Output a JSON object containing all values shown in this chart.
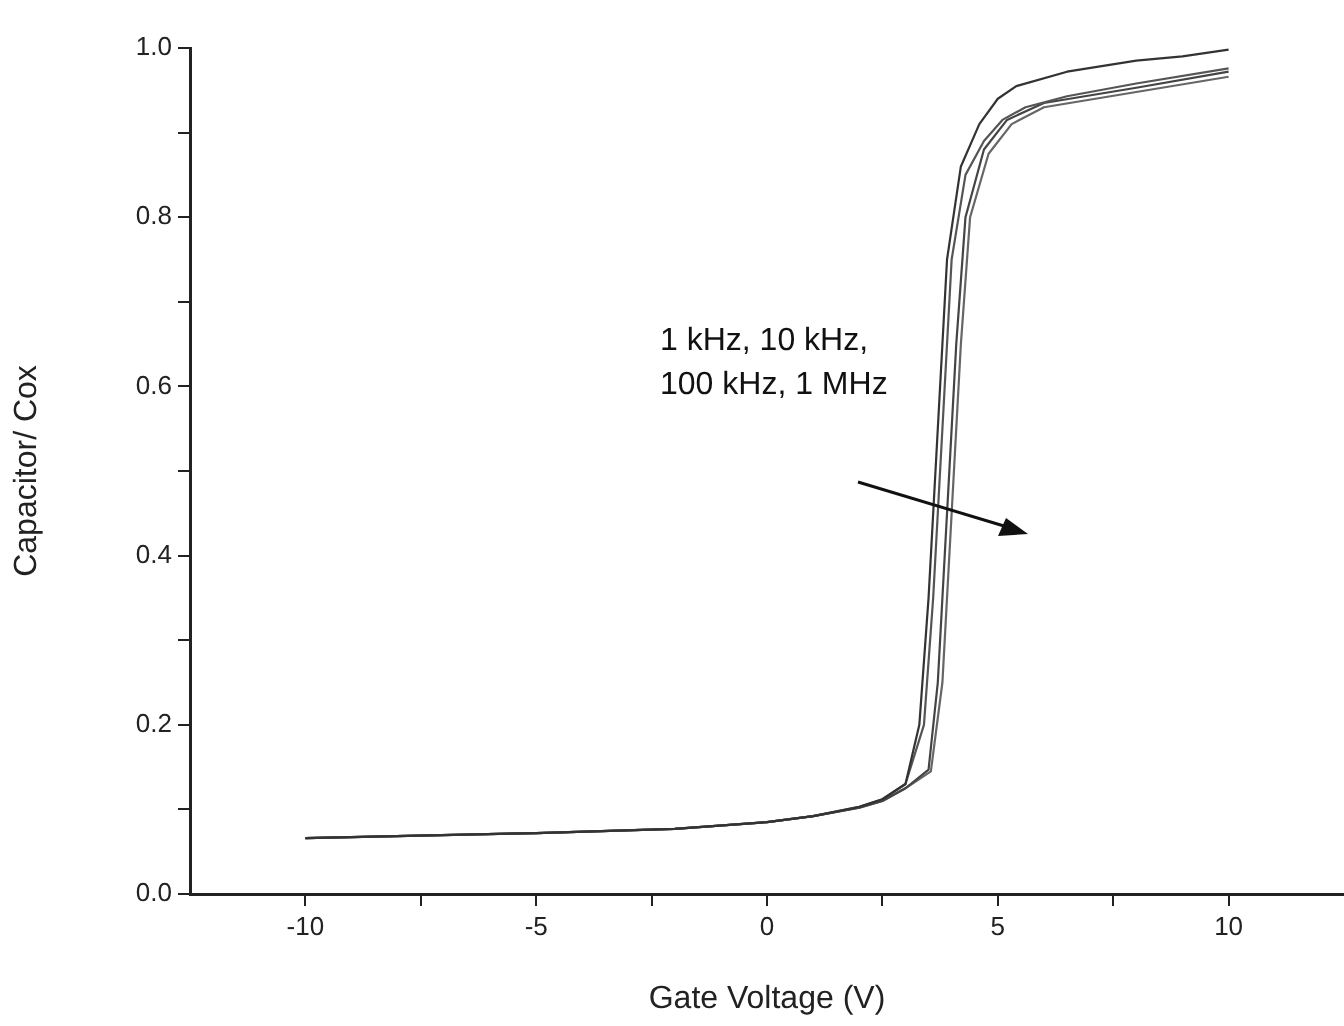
{
  "chart_data": {
    "type": "line",
    "xlabel": "Gate Voltage (V)",
    "ylabel": "Capacitor/ Cox",
    "annotations": [
      "1 kHz, 10 kHz, 100 kHz, 1 MHz"
    ],
    "xlim": [
      -12.5,
      12.5
    ],
    "xticks": [
      -10,
      {
        "value": -7.5,
        "label": null
      },
      -5,
      {
        "value": -2.5,
        "label": null
      },
      0,
      {
        "value": 2.5,
        "label": null
      },
      5,
      {
        "value": 7.5,
        "label": null
      },
      10
    ],
    "ylim": [
      0,
      1
    ],
    "yticks": [
      {
        "value": 0,
        "label": "0.0"
      },
      {
        "value": 0.1,
        "label": null
      },
      {
        "value": 0.2,
        "label": "0.2"
      },
      {
        "value": 0.3,
        "label": null
      },
      {
        "value": 0.4,
        "label": "0.4"
      },
      {
        "value": 0.5,
        "label": null
      },
      {
        "value": 0.6,
        "label": "0.6"
      },
      {
        "value": 0.7,
        "label": null
      },
      {
        "value": 0.8,
        "label": "0.8"
      },
      {
        "value": 0.9,
        "label": null
      },
      {
        "value": 1,
        "label": "1.0"
      }
    ],
    "grid": false,
    "legend": false,
    "marker": "none",
    "line_style": "solid",
    "series": [
      {
        "color": "#333333",
        "x": [
          -10,
          -5,
          -2,
          0,
          1,
          2,
          2.5,
          3,
          3.3,
          3.5,
          3.7,
          3.9,
          4.2,
          4.6,
          5,
          5.4,
          6.5,
          8,
          9,
          10
        ],
        "values": [
          0.066,
          0.072,
          0.077,
          0.085,
          0.092,
          0.103,
          0.112,
          0.13,
          0.2,
          0.35,
          0.55,
          0.75,
          0.86,
          0.91,
          0.94,
          0.955,
          0.972,
          0.985,
          0.99,
          0.998
        ]
      },
      {
        "color": "#555555",
        "x": [
          -10,
          -5,
          -2,
          0,
          1,
          2,
          2.5,
          3,
          3.4,
          3.6,
          3.8,
          4,
          4.3,
          4.7,
          5.1,
          5.6,
          6.5,
          8,
          10
        ],
        "values": [
          0.066,
          0.072,
          0.077,
          0.085,
          0.092,
          0.103,
          0.112,
          0.13,
          0.2,
          0.35,
          0.55,
          0.75,
          0.85,
          0.89,
          0.915,
          0.93,
          0.943,
          0.958,
          0.976
        ]
      },
      {
        "color": "#444444",
        "x": [
          -10,
          -5,
          -2,
          0,
          1,
          2,
          2.5,
          3,
          3.5,
          3.7,
          3.9,
          4.1,
          4.3,
          4.7,
          5.2,
          6,
          8,
          10
        ],
        "values": [
          0.066,
          0.072,
          0.077,
          0.085,
          0.092,
          0.102,
          0.11,
          0.125,
          0.147,
          0.25,
          0.45,
          0.65,
          0.8,
          0.88,
          0.915,
          0.935,
          0.953,
          0.972
        ]
      },
      {
        "color": "#666666",
        "x": [
          -10,
          -5,
          -2,
          0,
          1,
          2,
          2.5,
          3,
          3.55,
          3.8,
          4,
          4.2,
          4.4,
          4.8,
          5.3,
          6,
          8,
          10
        ],
        "values": [
          0.066,
          0.072,
          0.077,
          0.085,
          0.092,
          0.102,
          0.11,
          0.125,
          0.145,
          0.25,
          0.45,
          0.65,
          0.8,
          0.875,
          0.91,
          0.93,
          0.948,
          0.966
        ]
      }
    ]
  }
}
